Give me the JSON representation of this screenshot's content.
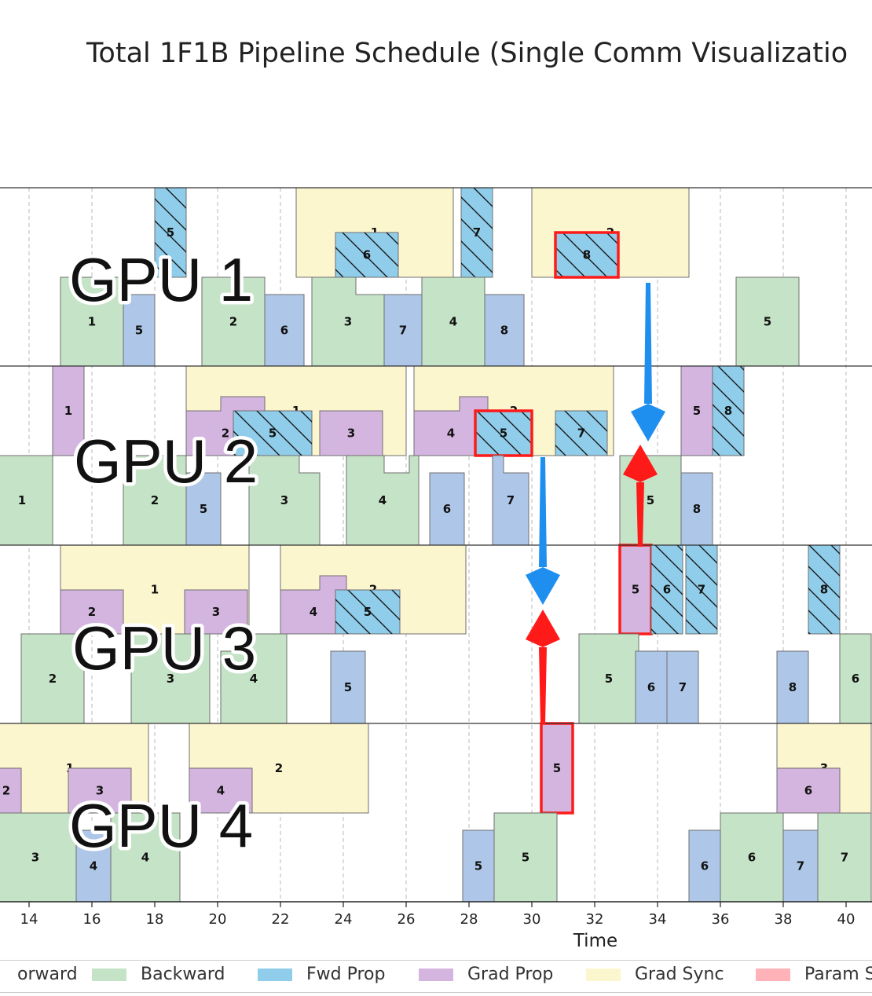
{
  "page": {
    "title": "Total 1F1B Pipeline Schedule (Single Comm Visualizatio"
  },
  "chart_data": {
    "type": "gantt",
    "title": "Total 1F1B Pipeline Schedule (Single Comm Visualizatio",
    "xlabel": "Time",
    "xlim": [
      12.8,
      40.8
    ],
    "xticks": [
      14,
      16,
      18,
      20,
      22,
      24,
      26,
      28,
      30,
      32,
      34,
      36,
      38,
      40
    ],
    "grid": "vertical dashed",
    "colors": {
      "Backward": "#c5e3c6",
      "Forward": "#aec7e8",
      "Fwd Prop": "#8fcdea",
      "Grad Prop": "#d4b5e0",
      "Grad Sync": "#fcf6cf",
      "Param Sync": "#ffb3b8",
      "highlight": "#ff1a1a",
      "arrow_down": "#1f8fef",
      "arrow_up": "#ff1a1a"
    },
    "gpus": [
      {
        "name": "GPU 1",
        "compute": [
          {
            "type": "Backward",
            "start": 15.0,
            "end": 17.0,
            "label": "1"
          },
          {
            "type": "Forward",
            "start": 17.0,
            "end": 18.0,
            "label": "5"
          },
          {
            "type": "Backward",
            "start": 19.5,
            "end": 21.5,
            "label": "2"
          },
          {
            "type": "Forward",
            "start": 21.5,
            "end": 22.75,
            "label": "6"
          },
          {
            "type": "Backward",
            "start": 23.0,
            "end": 25.3,
            "label": "3",
            "notch_start": 24.4,
            "notch_end": 25.3
          },
          {
            "type": "Forward",
            "start": 25.3,
            "end": 26.5,
            "label": "7"
          },
          {
            "type": "Backward",
            "start": 26.5,
            "end": 28.5,
            "label": "4"
          },
          {
            "type": "Forward",
            "start": 28.5,
            "end": 29.75,
            "label": "8"
          },
          {
            "type": "Backward",
            "start": 36.5,
            "end": 38.5,
            "label": "5"
          }
        ],
        "comm": [
          {
            "type": "Fwd Prop",
            "start": 18.0,
            "end": 19.0,
            "label": "5",
            "full": true
          },
          {
            "type": "Grad Sync",
            "start": 22.5,
            "end": 27.5,
            "label": "1"
          },
          {
            "type": "Fwd Prop",
            "start": 23.75,
            "end": 25.75,
            "label": "6"
          },
          {
            "type": "Fwd Prop",
            "start": 27.75,
            "end": 28.75,
            "label": "7",
            "full": true
          },
          {
            "type": "Grad Sync",
            "start": 30.0,
            "end": 35.0,
            "label": "2"
          },
          {
            "type": "Fwd Prop",
            "start": 30.75,
            "end": 32.75,
            "label": "8",
            "highlight": true
          }
        ]
      },
      {
        "name": "GPU 2",
        "compute": [
          {
            "type": "Backward",
            "start": 12.8,
            "end": 14.75,
            "label": "1"
          },
          {
            "type": "Backward",
            "start": 17.0,
            "end": 19.0,
            "label": "2"
          },
          {
            "type": "Forward",
            "start": 19.0,
            "end": 20.1,
            "label": "5"
          },
          {
            "type": "Backward",
            "start": 21.0,
            "end": 23.25,
            "label": "3",
            "notch_start": 22.6,
            "notch_end": 23.25
          },
          {
            "type": "Backward",
            "start": 24.1,
            "end": 26.4,
            "label": "4",
            "notch_start": 25.3,
            "notch_end": 26.1
          },
          {
            "type": "Forward",
            "start": 26.75,
            "end": 27.85,
            "label": "6"
          },
          {
            "type": "Forward",
            "start": 28.75,
            "end": 29.9,
            "label": "7",
            "notch_start": 29.1,
            "notch_end": 29.9
          },
          {
            "type": "Backward",
            "start": 32.8,
            "end": 34.75,
            "label": "5"
          },
          {
            "type": "Forward",
            "start": 34.75,
            "end": 35.75,
            "label": "8"
          }
        ],
        "comm": [
          {
            "type": "Grad Prop",
            "start": 14.75,
            "end": 15.75,
            "label": "1",
            "full": true
          },
          {
            "type": "Grad Sync",
            "start": 19.0,
            "end": 26.0,
            "label": "1"
          },
          {
            "type": "Grad Prop",
            "start": 19.0,
            "end": 21.5,
            "label": "2",
            "step": 20.1
          },
          {
            "type": "Fwd Prop",
            "start": 20.5,
            "end": 23.0,
            "label": "5"
          },
          {
            "type": "Grad Prop",
            "start": 23.25,
            "end": 25.25,
            "label": "3"
          },
          {
            "type": "Grad Sync",
            "start": 26.25,
            "end": 32.6,
            "label": "2"
          },
          {
            "type": "Grad Prop",
            "start": 26.25,
            "end": 28.6,
            "label": "4",
            "step": 27.7
          },
          {
            "type": "Fwd Prop",
            "start": 28.2,
            "end": 30.0,
            "label": "5",
            "highlight": true
          },
          {
            "type": "Fwd Prop",
            "start": 30.75,
            "end": 32.4,
            "label": "7"
          },
          {
            "type": "Grad Prop",
            "start": 34.75,
            "end": 35.75,
            "label": "5",
            "full": true
          },
          {
            "type": "Fwd Prop",
            "start": 35.75,
            "end": 36.75,
            "label": "8",
            "full": true
          }
        ]
      },
      {
        "name": "GPU 3",
        "compute": [
          {
            "type": "Backward",
            "start": 13.75,
            "end": 15.75,
            "label": "2"
          },
          {
            "type": "Backward",
            "start": 17.25,
            "end": 19.75,
            "label": "3"
          },
          {
            "type": "Backward",
            "start": 20.1,
            "end": 22.2,
            "label": "4",
            "notch_start": 20.1,
            "notch_end": 21.0
          },
          {
            "type": "Forward",
            "start": 23.6,
            "end": 24.7,
            "label": "5"
          },
          {
            "type": "Backward",
            "start": 31.5,
            "end": 33.4,
            "label": "5"
          },
          {
            "type": "Forward",
            "start": 33.3,
            "end": 34.3,
            "label": "6"
          },
          {
            "type": "Forward",
            "start": 34.3,
            "end": 35.3,
            "label": "7"
          },
          {
            "type": "Forward",
            "start": 37.8,
            "end": 38.8,
            "label": "8"
          },
          {
            "type": "Backward",
            "start": 39.8,
            "end": 40.8,
            "label": "6"
          }
        ],
        "comm": [
          {
            "type": "Grad Sync",
            "start": 15.0,
            "end": 21.0,
            "label": "1"
          },
          {
            "type": "Grad Prop",
            "start": 15.0,
            "end": 17.0,
            "label": "2"
          },
          {
            "type": "Grad Prop",
            "start": 18.95,
            "end": 20.95,
            "label": "3"
          },
          {
            "type": "Grad Sync",
            "start": 22.0,
            "end": 27.9,
            "label": "2"
          },
          {
            "type": "Grad Prop",
            "start": 22.0,
            "end": 24.1,
            "label": "4",
            "step": 23.25
          },
          {
            "type": "Fwd Prop",
            "start": 23.75,
            "end": 25.8,
            "label": "5"
          },
          {
            "type": "Grad Prop",
            "start": 32.8,
            "end": 33.8,
            "label": "5",
            "full": true,
            "highlight": true
          },
          {
            "type": "Fwd Prop",
            "start": 33.8,
            "end": 34.8,
            "label": "6",
            "full": true
          },
          {
            "type": "Fwd Prop",
            "start": 34.9,
            "end": 35.9,
            "label": "7",
            "full": true
          },
          {
            "type": "Fwd Prop",
            "start": 38.8,
            "end": 39.8,
            "label": "8",
            "full": true
          }
        ]
      },
      {
        "name": "GPU 4",
        "compute": [
          {
            "type": "Forward",
            "start": 12.8,
            "end": 12.9,
            "label": ""
          },
          {
            "type": "Backward",
            "start": 12.9,
            "end": 15.5,
            "label": "3"
          },
          {
            "type": "Forward",
            "start": 15.5,
            "end": 16.6,
            "label": "4"
          },
          {
            "type": "Backward",
            "start": 16.6,
            "end": 18.8,
            "label": "4"
          },
          {
            "type": "Forward",
            "start": 27.8,
            "end": 28.8,
            "label": "5"
          },
          {
            "type": "Backward",
            "start": 28.8,
            "end": 30.8,
            "label": "5"
          },
          {
            "type": "Forward",
            "start": 35.0,
            "end": 36.0,
            "label": "6"
          },
          {
            "type": "Backward",
            "start": 36.0,
            "end": 38.0,
            "label": "6"
          },
          {
            "type": "Forward",
            "start": 38.0,
            "end": 39.1,
            "label": "7"
          },
          {
            "type": "Backward",
            "start": 39.1,
            "end": 40.8,
            "label": "7"
          }
        ],
        "comm": [
          {
            "type": "Grad Sync",
            "start": 12.8,
            "end": 17.8,
            "label": "1"
          },
          {
            "type": "Grad Prop",
            "start": 12.8,
            "end": 13.75,
            "label": "2"
          },
          {
            "type": "Grad Prop",
            "start": 15.25,
            "end": 17.25,
            "label": "3"
          },
          {
            "type": "Grad Sync",
            "start": 19.1,
            "end": 24.8,
            "label": "2"
          },
          {
            "type": "Grad Prop",
            "start": 19.1,
            "end": 21.1,
            "label": "4"
          },
          {
            "type": "Grad Prop",
            "start": 30.3,
            "end": 31.3,
            "label": "5",
            "full": true,
            "highlight": true
          },
          {
            "type": "Grad Sync",
            "start": 37.8,
            "end": 40.8,
            "label": "3"
          },
          {
            "type": "Grad Prop",
            "start": 37.8,
            "end": 39.8,
            "label": "6"
          }
        ]
      }
    ],
    "arrows": [
      {
        "color": "blue",
        "direction": "down",
        "x": 33.7,
        "from": "GPU 1",
        "to": "GPU 2"
      },
      {
        "color": "red",
        "direction": "up",
        "x": 33.45,
        "from": "GPU 3",
        "to": "GPU 2"
      },
      {
        "color": "blue",
        "direction": "down",
        "x": 30.35,
        "from": "GPU 2",
        "to": "GPU 3"
      },
      {
        "color": "red",
        "direction": "up",
        "x": 30.35,
        "from": "GPU 4",
        "to": "GPU 3"
      }
    ],
    "legend": {
      "placement": "bottom",
      "entries": [
        "orward",
        "Backward",
        "Fwd Prop",
        "Grad Prop",
        "Grad Sync",
        "Param S"
      ]
    }
  }
}
